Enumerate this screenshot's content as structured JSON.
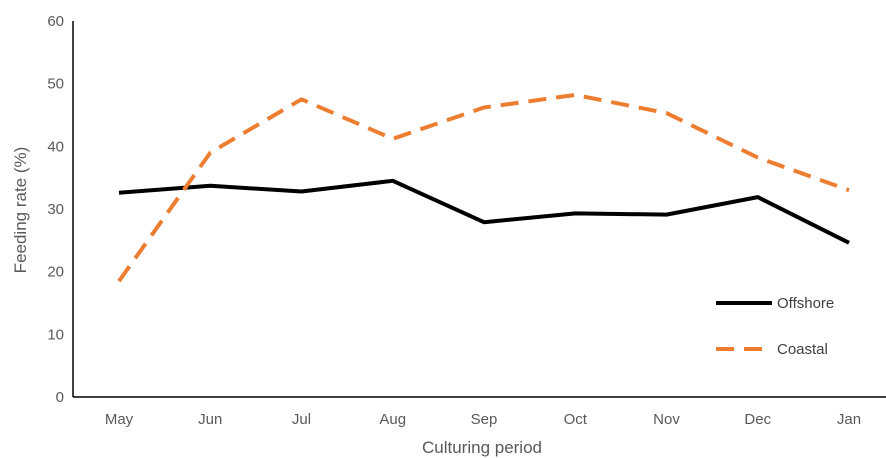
{
  "chart_data": {
    "type": "line",
    "title": "",
    "xlabel": "Culturing period",
    "ylabel": "Feeding rate (%)",
    "categories": [
      "May",
      "Jun",
      "Jul",
      "Aug",
      "Sep",
      "Oct",
      "Nov",
      "Dec",
      "Jan"
    ],
    "ylim": [
      0,
      60
    ],
    "yticks": [
      "0",
      "10",
      "20",
      "30",
      "40",
      "50",
      "60"
    ],
    "grid": false,
    "legend_position": "bottom-right",
    "series": [
      {
        "name": "Offshore",
        "color": "#000000",
        "dash": "solid",
        "values": [
          32.6,
          33.7,
          32.8,
          34.5,
          27.9,
          29.3,
          29.1,
          31.9,
          24.6
        ]
      },
      {
        "name": "Coastal",
        "color": "#ED7D31",
        "dash": "dashed",
        "values": [
          18.5,
          39.0,
          47.5,
          41.2,
          46.2,
          48.2,
          45.3,
          38.2,
          33.0
        ]
      }
    ]
  }
}
